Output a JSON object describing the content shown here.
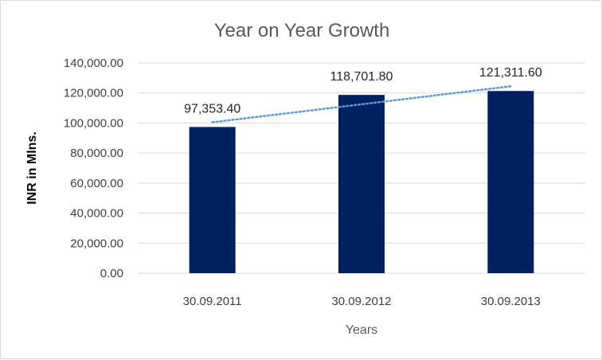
{
  "chart_data": {
    "type": "bar",
    "title": "Year on Year Growth",
    "xlabel": "Years",
    "ylabel": "INR in Mlns.",
    "categories": [
      "30.09.2011",
      "30.09.2012",
      "30.09.2013"
    ],
    "values": [
      97353.4,
      118701.8,
      121311.6
    ],
    "data_labels": [
      "97,353.40",
      "118,701.80",
      "121,311.60"
    ],
    "ylim": [
      0,
      140000
    ],
    "y_ticks": [
      0,
      20000,
      40000,
      60000,
      80000,
      100000,
      120000,
      140000
    ],
    "y_tick_labels": [
      "0.00",
      "20,000.00",
      "40,000.00",
      "60,000.00",
      "80,000.00",
      "100,000.00",
      "120,000.00",
      "140,000.00"
    ],
    "grid": true,
    "legend": "none",
    "trendline": "linear, dotted",
    "colors": {
      "bar": "#002060",
      "trendline": "#5b9bd5",
      "grid": "#d9d9d9"
    }
  }
}
